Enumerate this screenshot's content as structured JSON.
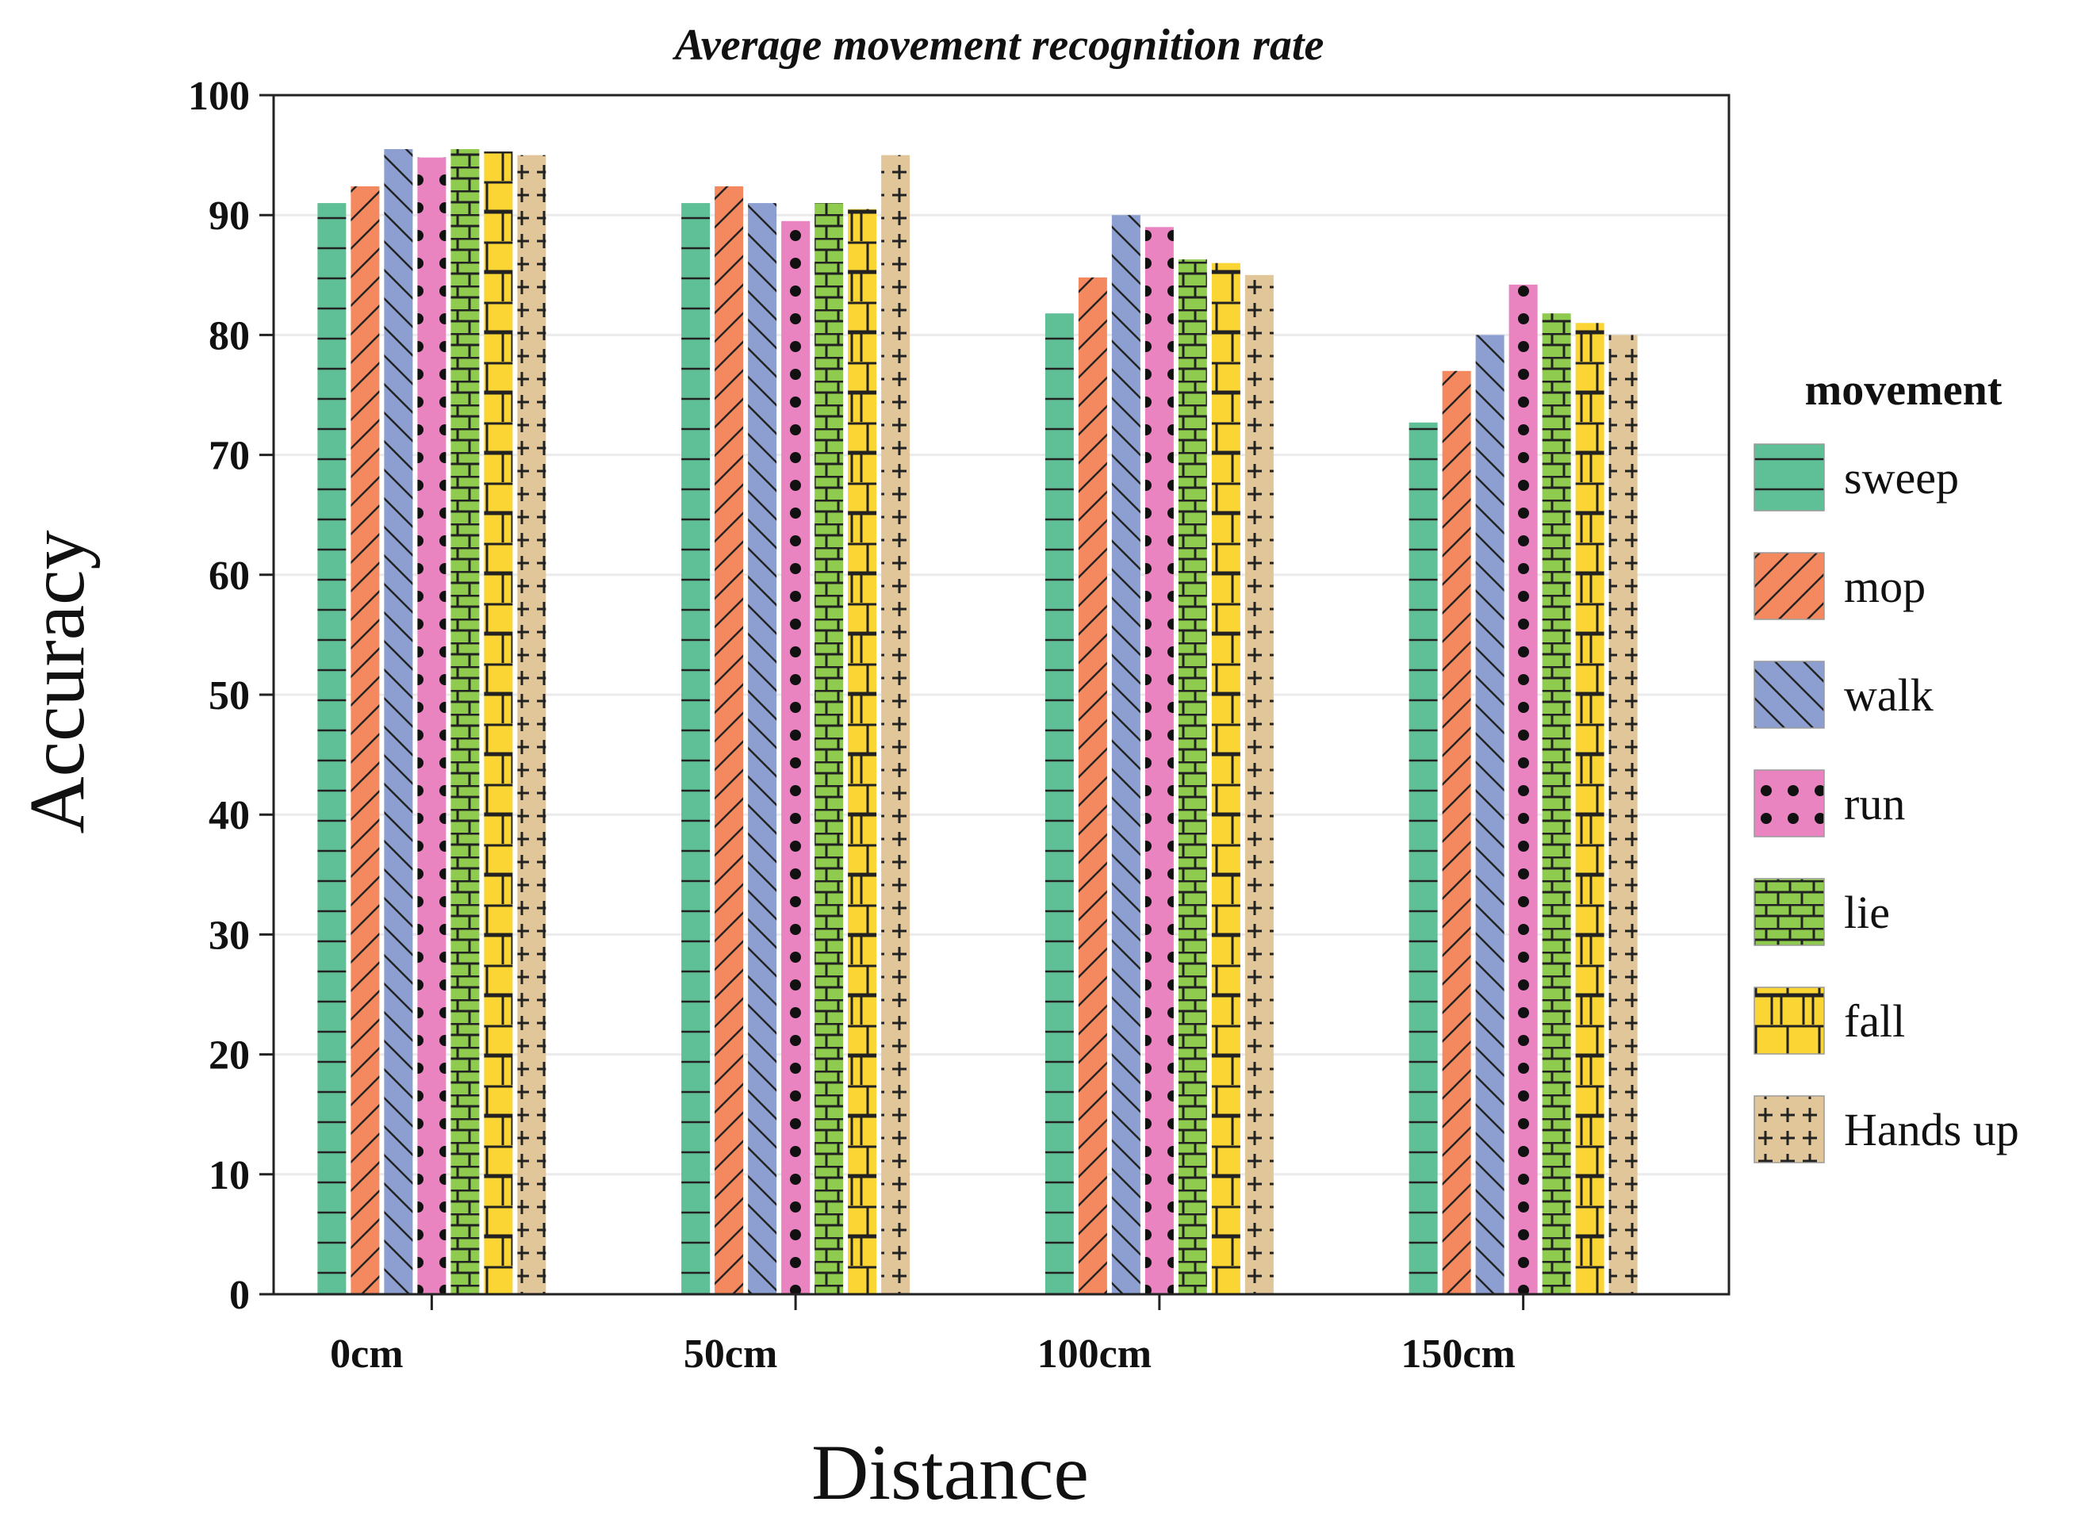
{
  "chart_data": {
    "type": "bar",
    "title": "Average movement recognition rate",
    "xlabel": "Distance",
    "ylabel": "Accuracy",
    "ylim": [
      0,
      100
    ],
    "yticks": [
      0,
      10,
      20,
      30,
      40,
      50,
      60,
      70,
      80,
      90,
      100
    ],
    "categories": [
      "0cm",
      "50cm",
      "100cm",
      "150cm"
    ],
    "legend_title": "movement",
    "legend_position": "right",
    "grid": true,
    "series": [
      {
        "name": "sweep",
        "color": "#5fbf96",
        "pattern": "horizontal-lines",
        "values": [
          91.0,
          91.0,
          81.8,
          72.7
        ]
      },
      {
        "name": "mop",
        "color": "#f4895f",
        "pattern": "forward-diagonal",
        "values": [
          92.4,
          92.4,
          84.8,
          77.0
        ]
      },
      {
        "name": "walk",
        "color": "#8c9fd0",
        "pattern": "back-diagonal",
        "values": [
          95.5,
          91.0,
          90.0,
          80.0
        ]
      },
      {
        "name": "run",
        "color": "#ea84c0",
        "pattern": "dots",
        "values": [
          94.8,
          89.5,
          89.0,
          84.2
        ]
      },
      {
        "name": "lie",
        "color": "#8fcb4e",
        "pattern": "brick-dense",
        "values": [
          95.5,
          91.0,
          86.3,
          81.8
        ]
      },
      {
        "name": "fall",
        "color": "#fbd534",
        "pattern": "brick",
        "values": [
          95.3,
          90.5,
          86.0,
          81.0
        ]
      },
      {
        "name": "Hands up",
        "color": "#e0c699",
        "pattern": "plus",
        "values": [
          95.0,
          95.0,
          85.0,
          80.0
        ]
      }
    ]
  }
}
